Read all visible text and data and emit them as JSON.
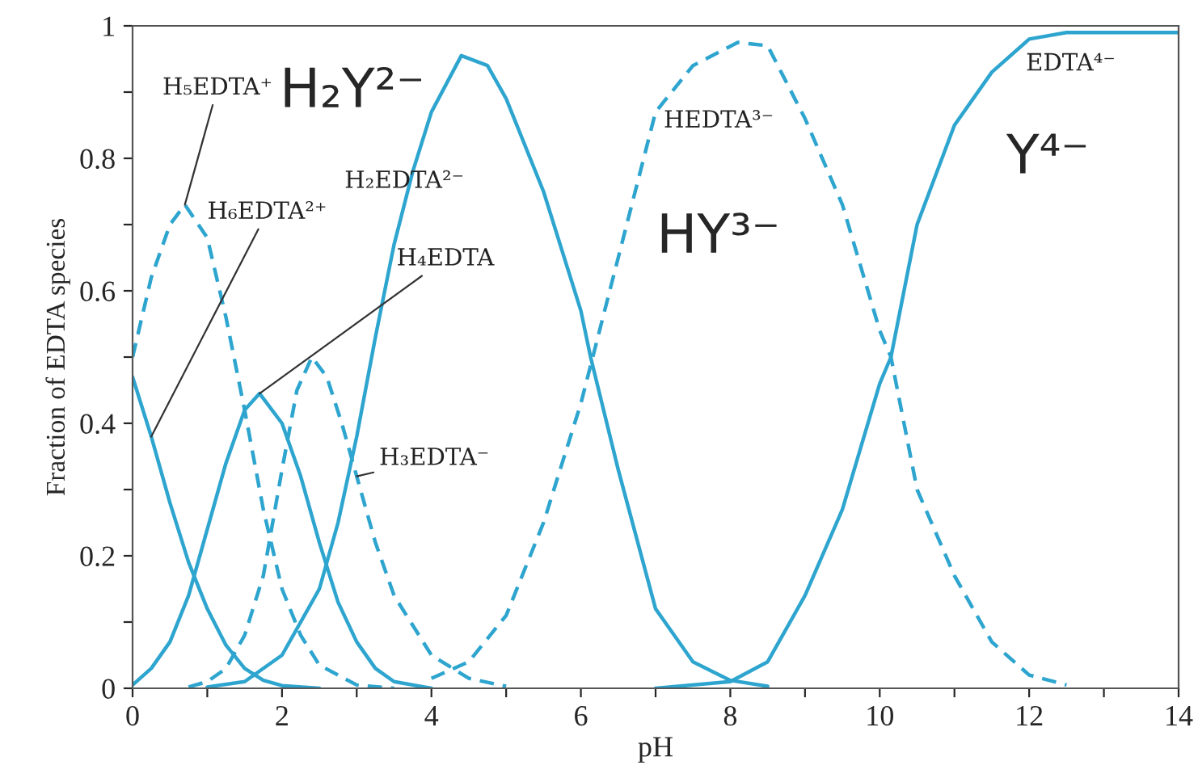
{
  "chart_data": {
    "type": "line",
    "xlabel": "pH",
    "ylabel": "Fraction of EDTA species",
    "xlim": [
      0,
      14
    ],
    "xticks": [
      0,
      {
        "value": 1,
        "label": null
      },
      2,
      {
        "value": 3,
        "label": null
      },
      4,
      {
        "value": 5,
        "label": null
      },
      6,
      {
        "value": 7,
        "label": null
      },
      8,
      {
        "value": 9,
        "label": null
      },
      10,
      {
        "value": 11,
        "label": null
      },
      12,
      {
        "value": 13,
        "label": null
      },
      14
    ],
    "ylim": [
      0,
      1
    ],
    "yticks": [
      0,
      {
        "value": 0.1,
        "label": null
      },
      0.2,
      {
        "value": 0.3,
        "label": null
      },
      0.4,
      {
        "value": 0.5,
        "label": null
      },
      0.6,
      {
        "value": 0.7,
        "label": null
      },
      0.8,
      {
        "value": 0.9,
        "label": null
      },
      1
    ],
    "grid": false,
    "legend": false,
    "marker": "none",
    "series": [
      {
        "name": "H₆EDTA²⁺",
        "color": "#2ea5cf",
        "line_style": "solid",
        "x": [
          0,
          0.25,
          0.5,
          0.75,
          1,
          1.25,
          1.5,
          1.75,
          2,
          2.5
        ],
        "values": [
          0.47,
          0.38,
          0.28,
          0.19,
          0.12,
          0.065,
          0.03,
          0.012,
          0.004,
          0
        ]
      },
      {
        "name": "H₅EDTA⁺",
        "color": "#2ea5cf",
        "line_style": "dashed",
        "x": [
          0,
          0.25,
          0.5,
          0.7,
          1,
          1.25,
          1.5,
          1.75,
          2,
          2.25,
          2.5,
          3,
          3.5
        ],
        "values": [
          0.5,
          0.62,
          0.7,
          0.73,
          0.68,
          0.56,
          0.42,
          0.27,
          0.15,
          0.08,
          0.035,
          0.005,
          0
        ]
      },
      {
        "name": "H₄EDTA",
        "color": "#2ea5cf",
        "line_style": "solid",
        "x": [
          0,
          0.25,
          0.5,
          0.75,
          1,
          1.25,
          1.5,
          1.7,
          2,
          2.25,
          2.5,
          2.75,
          3,
          3.25,
          3.5,
          4
        ],
        "values": [
          0.005,
          0.03,
          0.07,
          0.14,
          0.24,
          0.34,
          0.42,
          0.445,
          0.4,
          0.32,
          0.22,
          0.13,
          0.07,
          0.03,
          0.01,
          0
        ]
      },
      {
        "name": "H₃EDTA⁻",
        "color": "#2ea5cf",
        "line_style": "dashed",
        "x": [
          0.75,
          1,
          1.25,
          1.5,
          1.75,
          2,
          2.2,
          2.4,
          2.6,
          2.8,
          3,
          3.25,
          3.5,
          4,
          4.5,
          5
        ],
        "values": [
          0.002,
          0.01,
          0.03,
          0.08,
          0.17,
          0.33,
          0.45,
          0.5,
          0.47,
          0.4,
          0.32,
          0.22,
          0.14,
          0.05,
          0.015,
          0.003
        ]
      },
      {
        "name": "H₂EDTA²⁻",
        "color": "#2ea5cf",
        "line_style": "solid",
        "x": [
          1,
          1.5,
          2,
          2.5,
          2.75,
          3,
          3.25,
          3.5,
          3.75,
          4,
          4.4,
          4.75,
          5,
          5.5,
          6,
          6.13,
          6.5,
          7,
          7.5,
          8,
          8.5
        ],
        "values": [
          0.002,
          0.01,
          0.05,
          0.15,
          0.25,
          0.38,
          0.53,
          0.67,
          0.78,
          0.87,
          0.955,
          0.94,
          0.89,
          0.75,
          0.57,
          0.5,
          0.33,
          0.12,
          0.04,
          0.012,
          0.003
        ]
      },
      {
        "name": "HEDTA³⁻",
        "color": "#2ea5cf",
        "line_style": "dashed",
        "x": [
          4,
          4.5,
          5,
          5.5,
          6,
          6.5,
          7,
          7.5,
          8.1,
          8.5,
          9,
          9.5,
          10,
          10.15,
          10.5,
          11,
          11.5,
          12,
          12.5
        ],
        "values": [
          0.015,
          0.04,
          0.11,
          0.25,
          0.43,
          0.65,
          0.87,
          0.94,
          0.975,
          0.97,
          0.86,
          0.73,
          0.54,
          0.5,
          0.3,
          0.17,
          0.07,
          0.02,
          0.005
        ]
      },
      {
        "name": "EDTA⁴⁻",
        "color": "#2ea5cf",
        "line_style": "solid",
        "x": [
          7,
          8,
          8.5,
          9,
          9.5,
          10,
          10.15,
          10.5,
          11,
          11.5,
          12,
          12.5,
          14
        ],
        "values": [
          0,
          0.01,
          0.04,
          0.14,
          0.27,
          0.46,
          0.5,
          0.7,
          0.85,
          0.93,
          0.98,
          0.99,
          0.99
        ]
      }
    ],
    "annotations": [
      "H₂Y²⁻",
      "HY³⁻",
      "Y⁴⁻"
    ]
  }
}
